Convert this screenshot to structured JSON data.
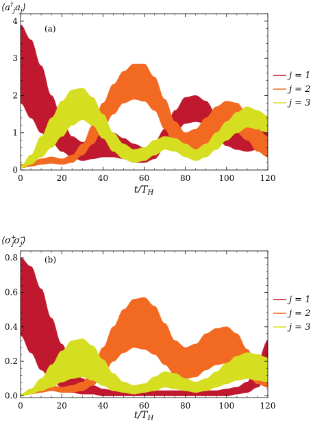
{
  "chart_data": [
    {
      "type": "line",
      "panel_label": "(a)",
      "ylabel": "⟨a†j aj⟩",
      "xlabel": "t/TH",
      "xlim": [
        0,
        120
      ],
      "ylim": [
        0,
        4.2
      ],
      "x_ticks": [
        0,
        20,
        40,
        60,
        80,
        100,
        120
      ],
      "y_ticks": [
        0,
        1,
        2,
        3,
        4
      ],
      "legend_position": "right",
      "series": [
        {
          "name": "j = 1",
          "color": "#c0182e",
          "x": [
            0,
            5,
            10,
            15,
            20,
            25,
            30,
            35,
            40,
            45,
            50,
            55,
            60,
            65,
            70,
            75,
            80,
            85,
            90,
            95,
            100,
            105,
            110,
            115,
            120
          ],
          "upper": [
            3.9,
            3.5,
            2.8,
            2.0,
            1.4,
            0.9,
            0.75,
            0.8,
            1.0,
            1.0,
            0.85,
            0.7,
            0.6,
            0.75,
            1.1,
            1.6,
            1.95,
            2.0,
            1.85,
            1.5,
            1.2,
            1.0,
            0.95,
            1.0,
            1.1
          ],
          "lower": [
            1.8,
            1.4,
            1.0,
            0.75,
            0.5,
            0.35,
            0.25,
            0.3,
            0.35,
            0.35,
            0.3,
            0.2,
            0.2,
            0.3,
            0.6,
            1.0,
            1.25,
            1.3,
            1.25,
            0.9,
            0.65,
            0.55,
            0.5,
            0.55,
            0.6
          ]
        },
        {
          "name": "j = 2",
          "color": "#f26a22",
          "x": [
            0,
            5,
            10,
            15,
            20,
            25,
            30,
            35,
            40,
            45,
            50,
            55,
            60,
            65,
            70,
            75,
            80,
            85,
            90,
            95,
            100,
            105,
            110,
            115,
            120
          ],
          "upper": [
            0.15,
            0.2,
            0.3,
            0.35,
            0.3,
            0.4,
            0.7,
            1.2,
            1.8,
            2.3,
            2.65,
            2.85,
            2.85,
            2.5,
            1.9,
            1.3,
            1.0,
            1.1,
            1.4,
            1.7,
            1.85,
            1.8,
            1.5,
            1.1,
            0.9
          ],
          "lower": [
            0.05,
            0.1,
            0.15,
            0.18,
            0.15,
            0.2,
            0.4,
            0.7,
            1.1,
            1.5,
            1.8,
            1.9,
            1.85,
            1.6,
            1.1,
            0.6,
            0.4,
            0.45,
            0.7,
            0.95,
            1.05,
            1.0,
            0.8,
            0.5,
            0.35
          ]
        },
        {
          "name": "j = 3",
          "color": "#d6de22",
          "x": [
            0,
            5,
            10,
            15,
            20,
            25,
            30,
            35,
            40,
            45,
            50,
            55,
            60,
            65,
            70,
            75,
            80,
            85,
            90,
            95,
            100,
            105,
            110,
            115,
            120
          ],
          "upper": [
            0.1,
            0.4,
            0.9,
            1.4,
            1.85,
            2.15,
            2.2,
            1.95,
            1.5,
            1.0,
            0.7,
            0.55,
            0.6,
            0.8,
            0.9,
            0.85,
            0.7,
            0.55,
            0.7,
            1.0,
            1.3,
            1.55,
            1.7,
            1.6,
            1.45
          ],
          "lower": [
            0.05,
            0.15,
            0.35,
            0.6,
            0.9,
            1.2,
            1.35,
            1.2,
            0.85,
            0.5,
            0.3,
            0.2,
            0.25,
            0.4,
            0.55,
            0.5,
            0.35,
            0.25,
            0.35,
            0.55,
            0.8,
            1.0,
            1.15,
            1.1,
            1.0
          ]
        }
      ]
    },
    {
      "type": "line",
      "panel_label": "(b)",
      "ylabel": "⟨σ+j σ−j⟩",
      "xlabel": "t/TH",
      "xlim": [
        0,
        120
      ],
      "ylim": [
        -0.01,
        0.84
      ],
      "x_ticks": [
        0,
        20,
        40,
        60,
        80,
        100,
        120
      ],
      "y_ticks": [
        0.0,
        0.2,
        0.4,
        0.6,
        0.8
      ],
      "legend_position": "right",
      "series": [
        {
          "name": "j = 1",
          "color": "#c0182e",
          "x": [
            0,
            5,
            10,
            15,
            20,
            25,
            30,
            35,
            40,
            45,
            50,
            55,
            60,
            65,
            70,
            75,
            80,
            85,
            90,
            95,
            100,
            105,
            110,
            115,
            120
          ],
          "upper": [
            0.8,
            0.75,
            0.62,
            0.45,
            0.3,
            0.18,
            0.1,
            0.06,
            0.04,
            0.03,
            0.03,
            0.03,
            0.03,
            0.03,
            0.03,
            0.03,
            0.03,
            0.03,
            0.03,
            0.03,
            0.04,
            0.05,
            0.08,
            0.2,
            0.32
          ],
          "lower": [
            0.35,
            0.25,
            0.15,
            0.09,
            0.05,
            0.02,
            0.01,
            0.01,
            0.0,
            0.0,
            0.0,
            0.0,
            0.0,
            0.0,
            0.0,
            0.0,
            0.0,
            0.0,
            0.0,
            0.0,
            0.0,
            0.01,
            0.02,
            0.05,
            0.12
          ]
        },
        {
          "name": "j = 2",
          "color": "#f26a22",
          "x": [
            0,
            5,
            10,
            15,
            20,
            25,
            30,
            35,
            40,
            45,
            50,
            55,
            60,
            65,
            70,
            75,
            80,
            85,
            90,
            95,
            100,
            105,
            110,
            115,
            120
          ],
          "upper": [
            0.01,
            0.03,
            0.05,
            0.06,
            0.05,
            0.06,
            0.08,
            0.15,
            0.28,
            0.4,
            0.5,
            0.56,
            0.57,
            0.52,
            0.42,
            0.32,
            0.28,
            0.3,
            0.36,
            0.39,
            0.4,
            0.36,
            0.27,
            0.17,
            0.12
          ],
          "lower": [
            0.0,
            0.01,
            0.02,
            0.03,
            0.02,
            0.02,
            0.03,
            0.06,
            0.12,
            0.2,
            0.25,
            0.28,
            0.27,
            0.24,
            0.18,
            0.12,
            0.1,
            0.11,
            0.15,
            0.18,
            0.19,
            0.17,
            0.12,
            0.07,
            0.05
          ]
        },
        {
          "name": "j = 3",
          "color": "#d6de22",
          "x": [
            0,
            5,
            10,
            15,
            20,
            25,
            30,
            35,
            40,
            45,
            50,
            55,
            60,
            65,
            70,
            75,
            80,
            85,
            90,
            95,
            100,
            105,
            110,
            115,
            120
          ],
          "upper": [
            0.01,
            0.04,
            0.1,
            0.18,
            0.26,
            0.32,
            0.33,
            0.29,
            0.21,
            0.13,
            0.08,
            0.06,
            0.07,
            0.11,
            0.14,
            0.13,
            0.1,
            0.08,
            0.1,
            0.14,
            0.19,
            0.23,
            0.25,
            0.24,
            0.22
          ],
          "lower": [
            0.0,
            0.01,
            0.03,
            0.05,
            0.08,
            0.1,
            0.11,
            0.09,
            0.06,
            0.03,
            0.02,
            0.01,
            0.02,
            0.03,
            0.05,
            0.04,
            0.03,
            0.02,
            0.03,
            0.05,
            0.07,
            0.09,
            0.1,
            0.09,
            0.08
          ]
        }
      ]
    }
  ]
}
